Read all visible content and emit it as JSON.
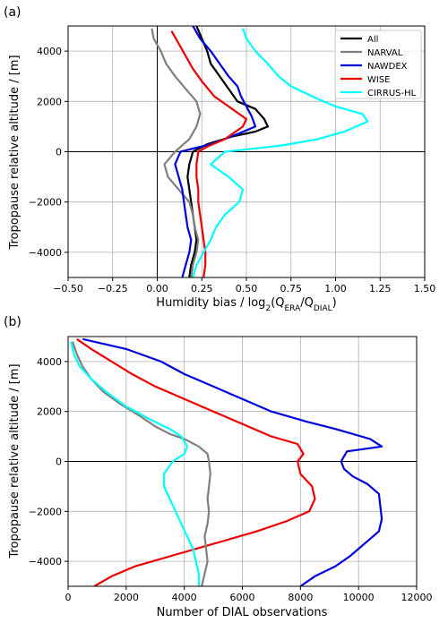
{
  "chart_data": [
    {
      "type": "line",
      "panel_label": "(a)",
      "xlabel": "Humidity bias / log",
      "xlabel_sub_parts": [
        "2",
        "(Q",
        "ERA",
        "/Q",
        "DIAL",
        ")"
      ],
      "ylabel": "Tropopause relative altitude / [m]",
      "xlim": [
        -0.5,
        1.5
      ],
      "ylim": [
        -5000,
        5000
      ],
      "xticks": [
        -0.5,
        -0.25,
        0.0,
        0.25,
        0.5,
        0.75,
        1.0,
        1.25,
        1.5
      ],
      "xtick_labels": [
        "−0.50",
        "−0.25",
        "0.00",
        "0.25",
        "0.50",
        "0.75",
        "1.00",
        "1.25",
        "1.50"
      ],
      "yticks": [
        -4000,
        -2000,
        0,
        2000,
        4000
      ],
      "ytick_labels": [
        "−4000",
        "−2000",
        "0",
        "2000",
        "4000"
      ],
      "grid": true,
      "legend_position": "top-right",
      "reference_lines": {
        "vertical_x": 0,
        "horizontal_y": 0
      },
      "series": [
        {
          "name": "All",
          "color": "#000000",
          "points": [
            [
              0.18,
              -5000
            ],
            [
              0.19,
              -4500
            ],
            [
              0.21,
              -4000
            ],
            [
              0.22,
              -3500
            ],
            [
              0.21,
              -3000
            ],
            [
              0.2,
              -2500
            ],
            [
              0.19,
              -2000
            ],
            [
              0.18,
              -1500
            ],
            [
              0.17,
              -1000
            ],
            [
              0.18,
              -500
            ],
            [
              0.2,
              0
            ],
            [
              0.28,
              300
            ],
            [
              0.42,
              600
            ],
            [
              0.55,
              800
            ],
            [
              0.62,
              1000
            ],
            [
              0.6,
              1300
            ],
            [
              0.55,
              1700
            ],
            [
              0.45,
              2000
            ],
            [
              0.4,
              2500
            ],
            [
              0.35,
              3000
            ],
            [
              0.3,
              3500
            ],
            [
              0.28,
              4000
            ],
            [
              0.25,
              4500
            ],
            [
              0.22,
              5000
            ]
          ]
        },
        {
          "name": "NARVAL",
          "color": "#808080",
          "points": [
            [
              0.19,
              -5000
            ],
            [
              0.2,
              -4500
            ],
            [
              0.22,
              -4000
            ],
            [
              0.23,
              -3500
            ],
            [
              0.21,
              -3000
            ],
            [
              0.2,
              -2500
            ],
            [
              0.18,
              -2000
            ],
            [
              0.12,
              -1500
            ],
            [
              0.06,
              -1000
            ],
            [
              0.04,
              -500
            ],
            [
              0.1,
              0
            ],
            [
              0.18,
              500
            ],
            [
              0.22,
              1000
            ],
            [
              0.24,
              1500
            ],
            [
              0.22,
              2000
            ],
            [
              0.16,
              2500
            ],
            [
              0.1,
              3000
            ],
            [
              0.05,
              3500
            ],
            [
              0.02,
              4000
            ],
            [
              -0.02,
              4500
            ],
            [
              -0.03,
              4900
            ]
          ]
        },
        {
          "name": "NAWDEX",
          "color": "#0000dd",
          "points": [
            [
              0.14,
              -5000
            ],
            [
              0.16,
              -4500
            ],
            [
              0.18,
              -4000
            ],
            [
              0.19,
              -3500
            ],
            [
              0.17,
              -3000
            ],
            [
              0.16,
              -2500
            ],
            [
              0.15,
              -2000
            ],
            [
              0.14,
              -1500
            ],
            [
              0.12,
              -1000
            ],
            [
              0.1,
              -500
            ],
            [
              0.13,
              0
            ],
            [
              0.3,
              300
            ],
            [
              0.45,
              700
            ],
            [
              0.55,
              1000
            ],
            [
              0.53,
              1400
            ],
            [
              0.5,
              1800
            ],
            [
              0.47,
              2200
            ],
            [
              0.45,
              2600
            ],
            [
              0.4,
              3000
            ],
            [
              0.35,
              3500
            ],
            [
              0.3,
              4000
            ],
            [
              0.24,
              4500
            ],
            [
              0.2,
              5000
            ]
          ]
        },
        {
          "name": "WISE",
          "color": "#ee0000",
          "points": [
            [
              0.26,
              -5000
            ],
            [
              0.27,
              -4500
            ],
            [
              0.27,
              -4000
            ],
            [
              0.26,
              -3500
            ],
            [
              0.25,
              -3000
            ],
            [
              0.24,
              -2500
            ],
            [
              0.23,
              -2000
            ],
            [
              0.23,
              -1500
            ],
            [
              0.22,
              -1000
            ],
            [
              0.22,
              -500
            ],
            [
              0.23,
              0
            ],
            [
              0.28,
              200
            ],
            [
              0.38,
              500
            ],
            [
              0.48,
              1000
            ],
            [
              0.5,
              1300
            ],
            [
              0.42,
              1700
            ],
            [
              0.32,
              2200
            ],
            [
              0.25,
              2800
            ],
            [
              0.2,
              3300
            ],
            [
              0.16,
              3800
            ],
            [
              0.12,
              4300
            ],
            [
              0.08,
              4800
            ]
          ]
        },
        {
          "name": "CIRRUS-HL",
          "color": "#00ffff",
          "points": [
            [
              0.2,
              -5000
            ],
            [
              0.22,
              -4500
            ],
            [
              0.26,
              -4000
            ],
            [
              0.3,
              -3500
            ],
            [
              0.33,
              -3000
            ],
            [
              0.38,
              -2500
            ],
            [
              0.46,
              -2000
            ],
            [
              0.48,
              -1500
            ],
            [
              0.4,
              -1000
            ],
            [
              0.3,
              -500
            ],
            [
              0.38,
              0
            ],
            [
              0.7,
              250
            ],
            [
              0.9,
              500
            ],
            [
              1.05,
              800
            ],
            [
              1.18,
              1200
            ],
            [
              1.15,
              1500
            ],
            [
              1.0,
              1800
            ],
            [
              0.9,
              2100
            ],
            [
              0.75,
              2600
            ],
            [
              0.68,
              3000
            ],
            [
              0.62,
              3500
            ],
            [
              0.55,
              4000
            ],
            [
              0.5,
              4500
            ],
            [
              0.48,
              4900
            ]
          ]
        }
      ]
    },
    {
      "type": "line",
      "panel_label": "(b)",
      "xlabel": "Number of DIAL observations",
      "ylabel": "Tropopause relative altitude / [m]",
      "xlim": [
        0,
        12000
      ],
      "ylim": [
        -5000,
        5000
      ],
      "xticks": [
        0,
        2000,
        4000,
        6000,
        8000,
        10000,
        12000
      ],
      "xtick_labels": [
        "0",
        "2000",
        "4000",
        "6000",
        "8000",
        "10000",
        "12000"
      ],
      "yticks": [
        -4000,
        -2000,
        0,
        2000,
        4000
      ],
      "ytick_labels": [
        "−4000",
        "−2000",
        "0",
        "2000",
        "4000"
      ],
      "grid": true,
      "reference_lines": {
        "horizontal_y": 0
      },
      "series": [
        {
          "color": "#0000dd",
          "points": [
            [
              8000,
              -5000
            ],
            [
              8500,
              -4600
            ],
            [
              9200,
              -4200
            ],
            [
              9700,
              -3800
            ],
            [
              10200,
              -3300
            ],
            [
              10700,
              -2800
            ],
            [
              10800,
              -2300
            ],
            [
              10750,
              -1800
            ],
            [
              10700,
              -1300
            ],
            [
              10300,
              -900
            ],
            [
              9800,
              -600
            ],
            [
              9500,
              -300
            ],
            [
              9400,
              0
            ],
            [
              9600,
              400
            ],
            [
              10800,
              600
            ],
            [
              10400,
              900
            ],
            [
              9200,
              1300
            ],
            [
              8200,
              1600
            ],
            [
              7000,
              2000
            ],
            [
              6000,
              2500
            ],
            [
              5000,
              3000
            ],
            [
              4000,
              3500
            ],
            [
              3200,
              4000
            ],
            [
              2000,
              4500
            ],
            [
              500,
              4900
            ]
          ]
        },
        {
          "color": "#ee0000",
          "points": [
            [
              900,
              -5000
            ],
            [
              1500,
              -4600
            ],
            [
              2300,
              -4200
            ],
            [
              3500,
              -3800
            ],
            [
              5000,
              -3300
            ],
            [
              6500,
              -2800
            ],
            [
              7500,
              -2400
            ],
            [
              8300,
              -2000
            ],
            [
              8500,
              -1500
            ],
            [
              8400,
              -1000
            ],
            [
              8000,
              -500
            ],
            [
              7900,
              0
            ],
            [
              8100,
              300
            ],
            [
              7900,
              700
            ],
            [
              7000,
              1000
            ],
            [
              6000,
              1500
            ],
            [
              5000,
              2000
            ],
            [
              4000,
              2500
            ],
            [
              3000,
              3000
            ],
            [
              2200,
              3500
            ],
            [
              1500,
              4000
            ],
            [
              800,
              4500
            ],
            [
              300,
              4900
            ]
          ]
        },
        {
          "color": "#808080",
          "points": [
            [
              4600,
              -5000
            ],
            [
              4700,
              -4500
            ],
            [
              4800,
              -4000
            ],
            [
              4750,
              -3500
            ],
            [
              4700,
              -3000
            ],
            [
              4800,
              -2500
            ],
            [
              4850,
              -2000
            ],
            [
              4800,
              -1500
            ],
            [
              4850,
              -1000
            ],
            [
              4900,
              -500
            ],
            [
              4850,
              0
            ],
            [
              4800,
              300
            ],
            [
              4500,
              600
            ],
            [
              4000,
              900
            ],
            [
              3500,
              1100
            ],
            [
              3000,
              1400
            ],
            [
              2500,
              1800
            ],
            [
              1800,
              2300
            ],
            [
              1200,
              2800
            ],
            [
              800,
              3300
            ],
            [
              500,
              3800
            ],
            [
              300,
              4300
            ],
            [
              150,
              4800
            ]
          ]
        },
        {
          "color": "#00ffff",
          "points": [
            [
              4500,
              -5000
            ],
            [
              4500,
              -4500
            ],
            [
              4400,
              -4000
            ],
            [
              4300,
              -3500
            ],
            [
              4100,
              -3000
            ],
            [
              3900,
              -2500
            ],
            [
              3700,
              -2000
            ],
            [
              3500,
              -1500
            ],
            [
              3300,
              -1000
            ],
            [
              3300,
              -500
            ],
            [
              3600,
              0
            ],
            [
              4000,
              300
            ],
            [
              4100,
              600
            ],
            [
              3900,
              1000
            ],
            [
              3500,
              1300
            ],
            [
              2800,
              1700
            ],
            [
              2000,
              2200
            ],
            [
              1300,
              2800
            ],
            [
              800,
              3300
            ],
            [
              400,
              3800
            ],
            [
              200,
              4300
            ],
            [
              100,
              4800
            ]
          ]
        }
      ]
    }
  ]
}
